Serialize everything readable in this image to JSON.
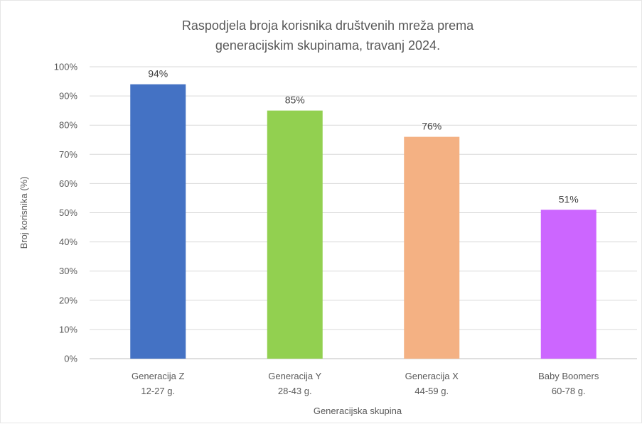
{
  "chart_data": {
    "type": "bar",
    "title_lines": [
      "Raspodjela broja korisnika društvenih mreža prema",
      "generacijskim skupinama, travanj 2024."
    ],
    "xlabel": "Generacijska skupina",
    "ylabel": "Broj korisnika (%)",
    "ylim": [
      0,
      100
    ],
    "y_ticks": [
      "0%",
      "10%",
      "20%",
      "30%",
      "40%",
      "50%",
      "60%",
      "70%",
      "80%",
      "90%",
      "100%"
    ],
    "grid": true,
    "categories": [
      [
        "Generacija Z",
        "12-27 g."
      ],
      [
        "Generacija Y",
        "28-43 g."
      ],
      [
        "Generacija X",
        "44-59 g."
      ],
      [
        "Baby Boomers",
        "60-78 g."
      ]
    ],
    "values": [
      94,
      85,
      76,
      51
    ],
    "data_labels": [
      "94%",
      "85%",
      "76%",
      "51%"
    ],
    "colors": [
      "#4472C4",
      "#92D050",
      "#F4B183",
      "#CC66FF"
    ]
  }
}
